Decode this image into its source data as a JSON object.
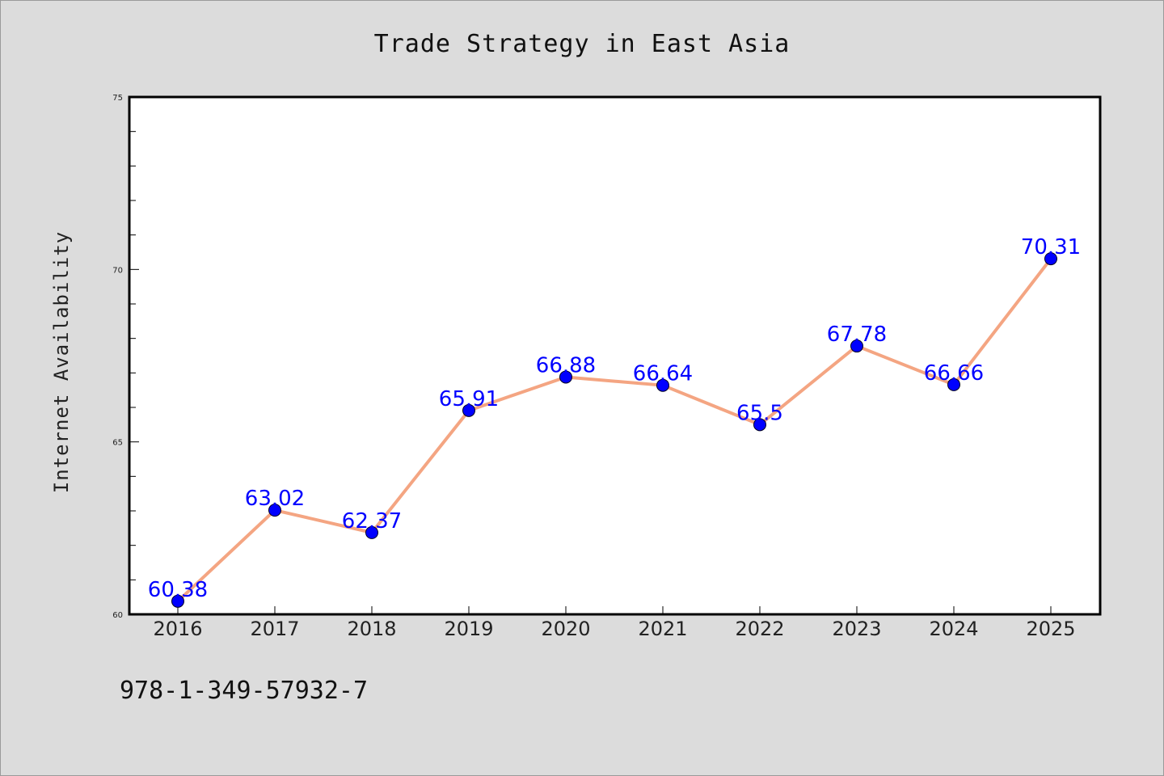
{
  "chart_data": {
    "type": "line",
    "title": "Trade Strategy in East Asia",
    "xlabel": "",
    "ylabel": "Internet Availability",
    "categories": [
      "2016",
      "2017",
      "2018",
      "2019",
      "2020",
      "2021",
      "2022",
      "2023",
      "2024",
      "2025"
    ],
    "series": [
      {
        "values": [
          60.38,
          63.02,
          62.37,
          65.91,
          66.88,
          66.64,
          65.5,
          67.78,
          66.66,
          70.31
        ],
        "data_labels": [
          "60.38",
          "63.02",
          "62.37",
          "65.91",
          "66.88",
          "66.64",
          "65.5",
          "67.78",
          "66.66",
          "70.31"
        ],
        "line_color": "#f4a582",
        "marker_color": "#0000ff"
      }
    ],
    "ylim": [
      60,
      75
    ],
    "yticks": [
      "60",
      "65",
      "70",
      "75"
    ],
    "grid": false,
    "legend": "none"
  },
  "footer": {
    "isbn": "978-1-349-57932-7"
  },
  "colors": {
    "background": "#dcdcdc",
    "plot_background": "#ffffff",
    "label": "#0000ff"
  }
}
